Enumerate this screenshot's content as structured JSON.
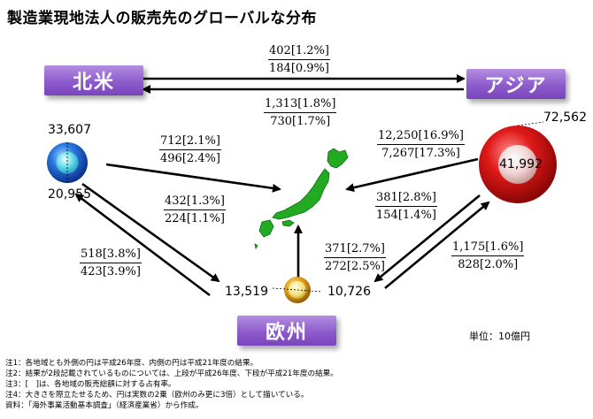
{
  "title": "製造業現地法人の販売先のグローバルな分布",
  "regions": {
    "north_america": "北米",
    "asia": "アジア",
    "europe": "欧州"
  },
  "region_values": {
    "north_america": {
      "outer": "33,607",
      "inner": "20,955"
    },
    "asia": {
      "outer": "72,562",
      "inner": "41,992"
    },
    "europe": {
      "outer": "13,519",
      "inner": "10,726"
    }
  },
  "flows": {
    "na_to_asia": {
      "top": "402[1.2%]",
      "bottom": "184[0.9%]"
    },
    "asia_to_na": {
      "top": "1,313[1.8%]",
      "bottom": "730[1.7%]"
    },
    "na_to_japan": {
      "top": "712[2.1%]",
      "bottom": "496[2.4%]"
    },
    "asia_to_japan": {
      "top": "12,250[16.9%]",
      "bottom": "7,267[17.3%]"
    },
    "na_to_europe": {
      "top": "432[1.3%]",
      "bottom": "224[1.1%]"
    },
    "europe_to_na": {
      "top": "518[3.8%]",
      "bottom": "423[3.9%]"
    },
    "asia_to_europe": {
      "top": "381[2.8%]",
      "bottom": "154[1.4%]"
    },
    "europe_to_japan": {
      "top": "371[2.7%]",
      "bottom": "272[2.5%]"
    },
    "europe_to_asia": {
      "top": "1,175[1.6%]",
      "bottom": "828[2.0%]"
    }
  },
  "unit": "単位：10億円",
  "notes": [
    "注1：各地域とも外側の円は平成26年度、内側の円は平成21年度の結果。",
    "注2：結果が2段記載されているものについては、上段が平成26年度、下段が平成21年度の結果。",
    "注3：[　]は、各地域の販売総額に対する占有率。",
    "注4：大きさを際立たせるため、円は実数の2乗（欧州のみ更に3倍）として描いている。",
    "資料：「海外事業活動基本調査」（経済産業省）から作成。"
  ],
  "colors": {
    "region_box": "#8d5bcc",
    "japan": "#22aa22",
    "north_america_circle": "#1a5fd6",
    "asia_circle": "#e01818",
    "europe_circle": "#e2a21e"
  }
}
